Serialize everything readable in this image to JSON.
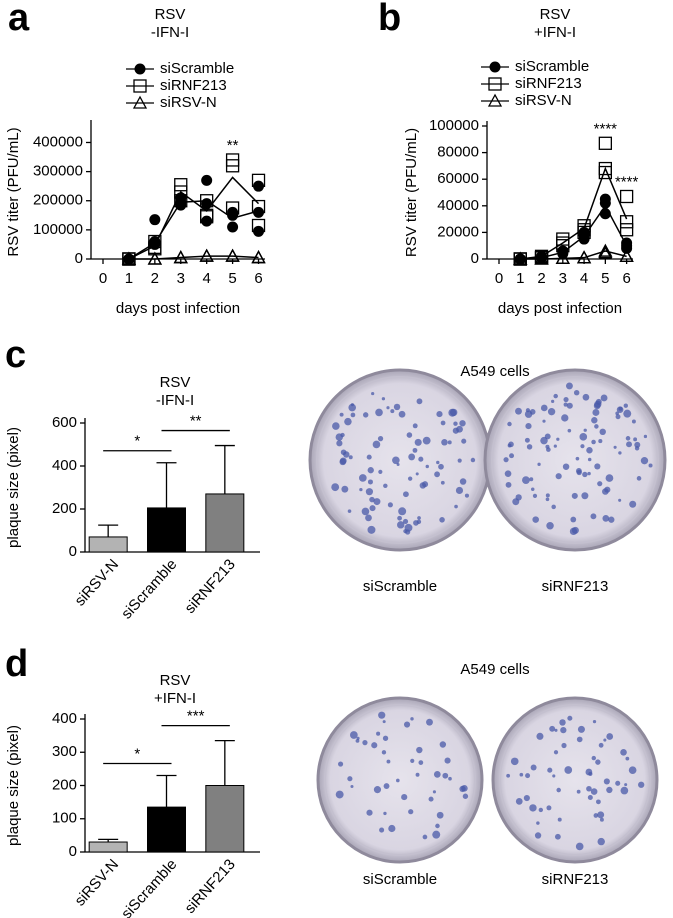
{
  "chart_data": [
    {
      "type": "line",
      "panel_label": "a",
      "title": [
        "RSV",
        "-IFN-I"
      ],
      "y_label": "RSV titer (PFU/mL)",
      "x_label": "days post infection",
      "x": [
        1,
        2,
        3,
        4,
        5,
        6
      ],
      "xlim": [
        0,
        6.25
      ],
      "xticks": [
        0,
        1,
        2,
        3,
        4,
        5,
        6
      ],
      "ylim": [
        0,
        460000
      ],
      "yticks": [
        0,
        100000,
        200000,
        300000,
        400000
      ],
      "series": [
        {
          "name": "siScramble",
          "color": "#000000",
          "marker": "circle",
          "values": [
            0,
            55000,
            195000,
            200000,
            140000,
            165000
          ],
          "replicates": [
            [
              0,
              0,
              0
            ],
            [
              135000,
              60000,
              50000
            ],
            [
              185000,
              195000,
              210000
            ],
            [
              270000,
              130000,
              190000
            ],
            [
              110000,
              150000,
              160000
            ],
            [
              250000,
              160000,
              95000
            ]
          ]
        },
        {
          "name": "siRNF213",
          "color": "#000000",
          "marker": "square",
          "values": [
            0,
            45000,
            230000,
            165000,
            280000,
            190000
          ],
          "replicates": [
            [
              0,
              0,
              0
            ],
            [
              60000,
              40000,
              35000
            ],
            [
              255000,
              230000,
              200000
            ],
            [
              200000,
              150000,
              145000
            ],
            [
              340000,
              320000,
              175000
            ],
            [
              270000,
              180000,
              115000
            ]
          ]
        },
        {
          "name": "siRSV-N",
          "color": "#000000",
          "marker": "triangle",
          "values": [
            0,
            0,
            5000,
            10000,
            10000,
            5000
          ],
          "replicates": [
            [
              0,
              0,
              0
            ],
            [
              0,
              0,
              0
            ],
            [
              5000,
              5000,
              5000
            ],
            [
              10000,
              10000,
              10000
            ],
            [
              10000,
              10000,
              10000
            ],
            [
              5000,
              5000,
              5000
            ]
          ]
        }
      ],
      "annotations": [
        {
          "text": "**",
          "x": 5
        }
      ]
    },
    {
      "type": "line",
      "panel_label": "b",
      "title": [
        "RSV",
        "+IFN-I"
      ],
      "y_label": "RSV titer (PFU/mL)",
      "x_label": "days post infection",
      "x": [
        1,
        2,
        3,
        4,
        5,
        6
      ],
      "xlim": [
        0,
        6.3
      ],
      "xticks": [
        0,
        1,
        2,
        3,
        4,
        5,
        6
      ],
      "ylim": [
        0,
        100000
      ],
      "yticks": [
        0,
        20000,
        40000,
        60000,
        80000,
        100000
      ],
      "series": [
        {
          "name": "siScramble",
          "color": "#000000",
          "marker": "circle",
          "values": [
            0,
            1000,
            5000,
            17000,
            40000,
            10000
          ],
          "replicates": [
            [
              0,
              0,
              0
            ],
            [
              2000,
              1000,
              1000
            ],
            [
              6000,
              5000,
              4000
            ],
            [
              20000,
              18000,
              15000
            ],
            [
              45000,
              42000,
              34000
            ],
            [
              12000,
              10000,
              8000
            ]
          ]
        },
        {
          "name": "siRNF213",
          "color": "#000000",
          "marker": "square",
          "values": [
            0,
            2000,
            12000,
            23000,
            68000,
            30000
          ],
          "replicates": [
            [
              0,
              0,
              0
            ],
            [
              2000,
              1000,
              1000
            ],
            [
              15000,
              12000,
              10000
            ],
            [
              25000,
              22000,
              20000
            ],
            [
              87000,
              68000,
              65000
            ],
            [
              47000,
              28000,
              22000
            ]
          ]
        },
        {
          "name": "siRSV-N",
          "color": "#000000",
          "marker": "triangle",
          "values": [
            0,
            0,
            500,
            1000,
            6000,
            2000
          ],
          "replicates": [
            [
              0,
              0,
              0
            ],
            [
              0,
              0,
              0
            ],
            [
              500,
              500,
              500
            ],
            [
              1000,
              1000,
              1000
            ],
            [
              6000,
              5000,
              4000
            ],
            [
              2000,
              2000,
              2000
            ]
          ]
        }
      ],
      "annotations": [
        {
          "text": "****",
          "x": 5
        },
        {
          "text": "****",
          "x": 6
        }
      ]
    },
    {
      "type": "bar",
      "panel_label": "c",
      "title": [
        "RSV",
        "-IFN-I"
      ],
      "y_label": "plaque size (pixel)",
      "categories": [
        "siRSV-N",
        "siScramble",
        "siRNF213"
      ],
      "values": [
        70,
        205,
        270
      ],
      "errors": [
        55,
        210,
        225
      ],
      "colors": [
        "#b3b3b3",
        "#000000",
        "#808080"
      ],
      "ylim": [
        0,
        600
      ],
      "yticks": [
        0,
        200,
        400,
        600
      ],
      "brackets": [
        {
          "text": "*",
          "from": 0,
          "to": 1
        },
        {
          "text": "**",
          "from": 1,
          "to": 2
        }
      ]
    },
    {
      "type": "bar",
      "panel_label": "d",
      "title": [
        "RSV",
        "+IFN-I"
      ],
      "y_label": "plaque size (pixel)",
      "categories": [
        "siRSV-N",
        "siScramble",
        "siRNF213"
      ],
      "values": [
        30,
        135,
        200
      ],
      "errors": [
        8,
        95,
        135
      ],
      "colors": [
        "#b3b3b3",
        "#000000",
        "#808080"
      ],
      "ylim": [
        0,
        400
      ],
      "yticks": [
        0,
        100,
        200,
        300,
        400
      ],
      "brackets": [
        {
          "text": "*",
          "from": 0,
          "to": 1
        },
        {
          "text": "***",
          "from": 1,
          "to": 2
        }
      ]
    }
  ],
  "images": [
    {
      "title": "A549 cells",
      "labels": [
        "siScramble",
        "siRNF213"
      ]
    },
    {
      "title": "A549 cells",
      "labels": [
        "siScramble",
        "siRNF213"
      ]
    }
  ]
}
